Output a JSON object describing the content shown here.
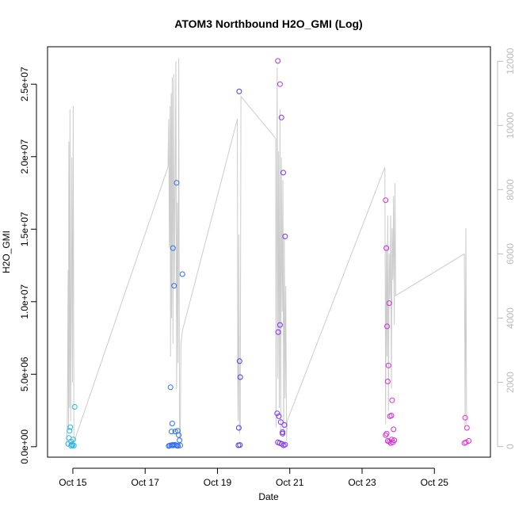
{
  "chart_data": {
    "type": "scatter",
    "title": "ATOM3 Northbound H2O_GMI (Log)",
    "xlabel": "Date",
    "ylabel": "H2O_GMI",
    "x_ticks": [
      {
        "x": 14.75,
        "label": "Oct 15"
      },
      {
        "x": 16.75,
        "label": "Oct 17"
      },
      {
        "x": 18.75,
        "label": "Oct 19"
      },
      {
        "x": 20.75,
        "label": "Oct 21"
      },
      {
        "x": 22.75,
        "label": "Oct 23"
      },
      {
        "x": 24.75,
        "label": "Oct 25"
      }
    ],
    "y_ticks": [
      {
        "v": 0,
        "label": "0.0e+00"
      },
      {
        "v": 5000000,
        "label": "5.0e+06"
      },
      {
        "v": 10000000,
        "label": "1.0e+07"
      },
      {
        "v": 15000000,
        "label": "1.5e+07"
      },
      {
        "v": 20000000,
        "label": "2.0e+07"
      },
      {
        "v": 25000000,
        "label": "2.5e+07"
      }
    ],
    "y2_ticks": [
      {
        "v": 0,
        "label": "0"
      },
      {
        "v": 2000,
        "label": "2000"
      },
      {
        "v": 4000,
        "label": "4000"
      },
      {
        "v": 6000,
        "label": "6000"
      },
      {
        "v": 8000,
        "label": "8000"
      },
      {
        "v": 10000,
        "label": "10000"
      },
      {
        "v": 12000,
        "label": "12000"
      }
    ],
    "xlim": [
      14.05,
      26.3
    ],
    "ylim": [
      -720000,
      27580000
    ],
    "y2lim": [
      -330,
      12450
    ],
    "grid": false,
    "legend": "none",
    "colors": {
      "line": "#cccccc",
      "axis": "#000000",
      "axis2": "#bbbbbb"
    },
    "points": [
      {
        "x": 14.62,
        "y": 200000,
        "c": "#29b6e8"
      },
      {
        "x": 14.64,
        "y": 600000,
        "c": "#29b6e8"
      },
      {
        "x": 14.66,
        "y": 1100000,
        "c": "#29b6e8"
      },
      {
        "x": 14.68,
        "y": 1350000,
        "c": "#29b6e8"
      },
      {
        "x": 14.7,
        "y": 350000,
        "c": "#29b6e8"
      },
      {
        "x": 14.72,
        "y": 150000,
        "c": "#29b6e8"
      },
      {
        "x": 14.74,
        "y": 100000,
        "c": "#29b6e8"
      },
      {
        "x": 14.76,
        "y": 500000,
        "c": "#29b6e8"
      },
      {
        "x": 14.78,
        "y": 80000,
        "c": "#29b6e8"
      },
      {
        "x": 14.8,
        "y": 2750000,
        "c": "#29b6e8"
      },
      {
        "x": 14.7,
        "y": 60000,
        "c": "#29b6e8"
      },
      {
        "x": 17.45,
        "y": 4100000,
        "c": "#2f6ef0"
      },
      {
        "x": 17.48,
        "y": 1050000,
        "c": "#2f6ef0"
      },
      {
        "x": 17.5,
        "y": 1600000,
        "c": "#2f6ef0"
      },
      {
        "x": 17.52,
        "y": 13700000,
        "c": "#2f6ef0"
      },
      {
        "x": 17.55,
        "y": 11100000,
        "c": "#2f6ef0"
      },
      {
        "x": 17.58,
        "y": 1050000,
        "c": "#2f6ef0"
      },
      {
        "x": 17.62,
        "y": 18200000,
        "c": "#2f6ef0"
      },
      {
        "x": 17.65,
        "y": 1100000,
        "c": "#2f6ef0"
      },
      {
        "x": 17.68,
        "y": 800000,
        "c": "#2f6ef0"
      },
      {
        "x": 17.7,
        "y": 450000,
        "c": "#2f6ef0"
      },
      {
        "x": 17.78,
        "y": 11900000,
        "c": "#2f6ef0"
      },
      {
        "x": 17.4,
        "y": 50000,
        "c": "#2f6ef0"
      },
      {
        "x": 17.43,
        "y": 80000,
        "c": "#2f6ef0"
      },
      {
        "x": 17.47,
        "y": 100000,
        "c": "#2f6ef0"
      },
      {
        "x": 17.5,
        "y": 120000,
        "c": "#2f6ef0"
      },
      {
        "x": 17.53,
        "y": 90000,
        "c": "#2f6ef0"
      },
      {
        "x": 17.56,
        "y": 140000,
        "c": "#2f6ef0"
      },
      {
        "x": 17.6,
        "y": 110000,
        "c": "#2f6ef0"
      },
      {
        "x": 17.63,
        "y": 70000,
        "c": "#2f6ef0"
      },
      {
        "x": 17.66,
        "y": 60000,
        "c": "#2f6ef0"
      },
      {
        "x": 17.72,
        "y": 90000,
        "c": "#2f6ef0"
      },
      {
        "x": 19.35,
        "y": 24500000,
        "c": "#4a3af0"
      },
      {
        "x": 19.36,
        "y": 5900000,
        "c": "#4a3af0"
      },
      {
        "x": 19.38,
        "y": 4800000,
        "c": "#4a3af0"
      },
      {
        "x": 19.34,
        "y": 1300000,
        "c": "#4a3af0"
      },
      {
        "x": 19.33,
        "y": 100000,
        "c": "#4a3af0"
      },
      {
        "x": 19.37,
        "y": 120000,
        "c": "#4a3af0"
      },
      {
        "x": 20.4,
        "y": 2300000,
        "c": "#7b2ff0"
      },
      {
        "x": 20.43,
        "y": 7900000,
        "c": "#7b2ff0"
      },
      {
        "x": 20.45,
        "y": 2100000,
        "c": "#7b2ff0"
      },
      {
        "x": 20.48,
        "y": 8400000,
        "c": "#7b2ff0"
      },
      {
        "x": 20.5,
        "y": 1700000,
        "c": "#7b2ff0"
      },
      {
        "x": 20.52,
        "y": 22700000,
        "c": "#7b2ff0"
      },
      {
        "x": 20.55,
        "y": 900000,
        "c": "#7b2ff0"
      },
      {
        "x": 20.57,
        "y": 18900000,
        "c": "#7b2ff0"
      },
      {
        "x": 20.6,
        "y": 1500000,
        "c": "#7b2ff0"
      },
      {
        "x": 20.62,
        "y": 14500000,
        "c": "#7b2ff0"
      },
      {
        "x": 20.42,
        "y": 300000,
        "c": "#7b2ff0"
      },
      {
        "x": 20.47,
        "y": 250000,
        "c": "#7b2ff0"
      },
      {
        "x": 20.53,
        "y": 200000,
        "c": "#7b2ff0"
      },
      {
        "x": 20.58,
        "y": 100000,
        "c": "#7b2ff0"
      },
      {
        "x": 20.62,
        "y": 150000,
        "c": "#7b2ff0"
      },
      {
        "x": 20.48,
        "y": 25000000,
        "c": "#b02ff0"
      },
      {
        "x": 20.42,
        "y": 26600000,
        "c": "#b02ff0"
      },
      {
        "x": 20.55,
        "y": 1000000,
        "c": "#7b2ff0"
      },
      {
        "x": 23.4,
        "y": 17000000,
        "c": "#d42ad8"
      },
      {
        "x": 23.42,
        "y": 13700000,
        "c": "#d42ad8"
      },
      {
        "x": 23.44,
        "y": 8300000,
        "c": "#d42ad8"
      },
      {
        "x": 23.46,
        "y": 4500000,
        "c": "#d42ad8"
      },
      {
        "x": 23.48,
        "y": 5600000,
        "c": "#d42ad8"
      },
      {
        "x": 23.5,
        "y": 9900000,
        "c": "#d42ad8"
      },
      {
        "x": 23.52,
        "y": 2100000,
        "c": "#d42ad8"
      },
      {
        "x": 23.56,
        "y": 2150000,
        "c": "#d42ad8"
      },
      {
        "x": 23.58,
        "y": 3200000,
        "c": "#d42ad8"
      },
      {
        "x": 23.62,
        "y": 1200000,
        "c": "#d42ad8"
      },
      {
        "x": 23.4,
        "y": 800000,
        "c": "#d42ad8"
      },
      {
        "x": 23.43,
        "y": 900000,
        "c": "#d42ad8"
      },
      {
        "x": 23.46,
        "y": 400000,
        "c": "#d42ad8"
      },
      {
        "x": 23.5,
        "y": 350000,
        "c": "#d42ad8"
      },
      {
        "x": 23.54,
        "y": 250000,
        "c": "#d42ad8"
      },
      {
        "x": 23.57,
        "y": 500000,
        "c": "#d42ad8"
      },
      {
        "x": 23.6,
        "y": 300000,
        "c": "#d42ad8"
      },
      {
        "x": 23.64,
        "y": 450000,
        "c": "#d42ad8"
      },
      {
        "x": 25.6,
        "y": 2000000,
        "c": "#e62ad0"
      },
      {
        "x": 25.65,
        "y": 1300000,
        "c": "#e62ad0"
      },
      {
        "x": 25.7,
        "y": 400000,
        "c": "#e62ad0"
      },
      {
        "x": 25.62,
        "y": 300000,
        "c": "#e62ad0"
      },
      {
        "x": 25.58,
        "y": 250000,
        "c": "#e62ad0"
      }
    ],
    "line_series": {
      "axis": "right",
      "x": [
        14.58,
        14.6,
        14.62,
        14.63,
        14.64,
        14.66,
        14.67,
        14.69,
        14.7,
        14.72,
        14.74,
        14.76,
        14.78,
        14.8,
        17.38,
        17.4,
        17.42,
        17.44,
        17.45,
        17.47,
        17.48,
        17.5,
        17.52,
        17.54,
        17.56,
        17.58,
        17.6,
        17.62,
        17.64,
        17.66,
        17.68,
        17.7,
        17.72,
        17.74,
        17.78,
        19.3,
        19.31,
        19.32,
        19.33,
        19.34,
        19.36,
        19.38,
        19.4,
        20.36,
        20.37,
        20.4,
        20.42,
        20.44,
        20.46,
        20.48,
        20.5,
        20.52,
        20.54,
        20.56,
        20.58,
        20.6,
        20.62,
        20.64,
        20.66,
        20.68,
        23.38,
        23.4,
        23.42,
        23.44,
        23.46,
        23.48,
        23.5,
        23.52,
        23.54,
        23.56,
        23.58,
        23.6,
        23.62,
        23.64,
        23.66,
        23.68,
        25.58,
        25.6,
        25.62,
        25.64
      ],
      "y": [
        0,
        1100,
        5500,
        500,
        9500,
        1200,
        10500,
        800,
        3000,
        9000,
        2000,
        10600,
        100,
        200,
        8700,
        10200,
        6200,
        10600,
        2800,
        11000,
        4000,
        11500,
        3200,
        11600,
        5000,
        8200,
        12000,
        1800,
        7600,
        2600,
        12100,
        300,
        200,
        3200,
        3600,
        10200,
        2400,
        800,
        2100,
        6600,
        400,
        600,
        10900,
        9600,
        600,
        11800,
        2100,
        9200,
        1200,
        10500,
        400,
        9000,
        4200,
        8300,
        300,
        6600,
        1500,
        5000,
        200,
        800,
        8700,
        700,
        6300,
        2800,
        7200,
        1100,
        6000,
        4600,
        7200,
        1800,
        6800,
        5200,
        7800,
        3800,
        8200,
        4700,
        6000,
        600,
        6800,
        700
      ]
    }
  }
}
